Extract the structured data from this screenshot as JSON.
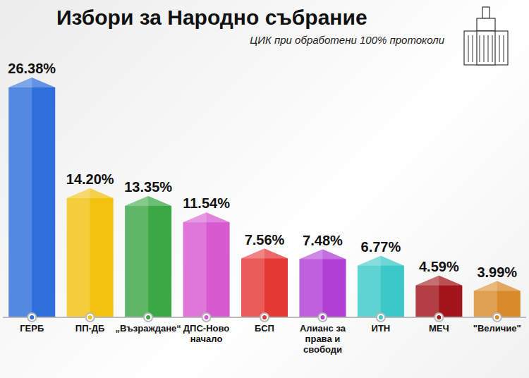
{
  "chart_data": {
    "type": "bar",
    "title": "Избори за Народно събрание",
    "subtitle": "ЦИК при обработени 100% протоколи",
    "categories": [
      "ГЕРБ",
      "ПП-ДБ",
      "„Възраждане“",
      "ДПС-Ново начало",
      "БСП",
      "Алианс за права и свободи",
      "ИТН",
      "МЕЧ",
      "\"Величие\""
    ],
    "values": [
      26.38,
      14.2,
      13.35,
      11.54,
      7.56,
      7.48,
      6.77,
      4.59,
      3.99
    ],
    "value_labels": [
      "26.38%",
      "14.20%",
      "13.35%",
      "11.54%",
      "7.56%",
      "7.48%",
      "6.77%",
      "4.59%",
      "3.99%"
    ],
    "colors": [
      "#2f6fdc",
      "#f2c20f",
      "#3aa845",
      "#d75ad0",
      "#e53935",
      "#b13fd6",
      "#3cc8c8",
      "#a3151b",
      "#d98b2b"
    ],
    "data_labels": true,
    "tick_labels": "x",
    "grid": false
  }
}
